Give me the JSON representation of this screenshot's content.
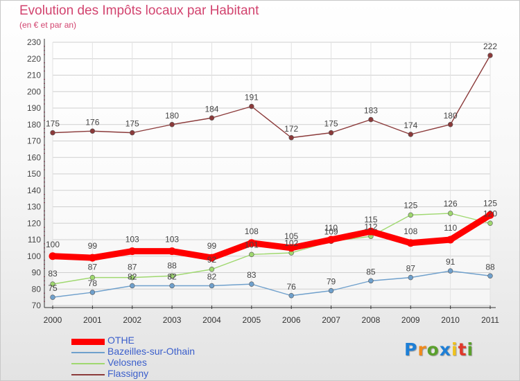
{
  "title": "Evolution des Impôts locaux par Habitant",
  "subtitle": "(en € et par an)",
  "logo": {
    "text": "Proxiti",
    "letters": [
      "P",
      "r",
      "o",
      "x",
      "i",
      "t",
      "i"
    ],
    "colors": [
      "#1e7fd6",
      "#f08a1c",
      "#5aa02c",
      "#1e7fd6",
      "#f0c21c",
      "#e0382a",
      "#5aa02c"
    ]
  },
  "chart_data": {
    "type": "line",
    "title": "Evolution des Impôts locaux par Habitant",
    "subtitle": "(en € et par an)",
    "xlabel": "",
    "ylabel": "",
    "ylim": [
      70,
      230
    ],
    "yticks": [
      "70",
      "80",
      "90",
      "100",
      "110",
      "120",
      "130",
      "140",
      "150",
      "160",
      "170",
      "180",
      "190",
      "200",
      "210",
      "220",
      "230"
    ],
    "x": [
      "2000",
      "2001",
      "2002",
      "2003",
      "2004",
      "2005",
      "2006",
      "2007",
      "2008",
      "2009",
      "2010",
      "2011"
    ],
    "grid": "horizontal",
    "legend_position": "bottom-left",
    "series": [
      {
        "name": "OTHE",
        "color": "#ff0000",
        "values": [
          100,
          99,
          103,
          103,
          99,
          108,
          105,
          110,
          115,
          108,
          110,
          125
        ],
        "labels": [
          "100",
          "99",
          "103",
          "103",
          "99",
          "108",
          "105",
          "110",
          "115",
          "108",
          "110",
          "125"
        ]
      },
      {
        "name": "Bazeilles-sur-Othain",
        "color": "#6fa0cc",
        "values": [
          75,
          78,
          82,
          82,
          82,
          83,
          76,
          79,
          85,
          87,
          91,
          88
        ],
        "labels": [
          "75",
          "78",
          "82",
          "82",
          "82",
          "83",
          "76",
          "79",
          "85",
          "87",
          "91",
          "88"
        ]
      },
      {
        "name": "Velosnes",
        "color": "#9fd86f",
        "values": [
          83,
          87,
          87,
          88,
          92,
          101,
          102,
          109,
          112,
          125,
          126,
          120
        ],
        "labels": [
          "83",
          "87",
          "87",
          "88",
          "92",
          "101",
          "102",
          "109",
          "112",
          "125",
          "126",
          "120"
        ]
      },
      {
        "name": "Flassigny",
        "color": "#8b3a3a",
        "values": [
          175,
          176,
          175,
          180,
          184,
          191,
          172,
          175,
          183,
          174,
          180,
          222
        ],
        "labels": [
          "175",
          "176",
          "175",
          "180",
          "184",
          "191",
          "172",
          "175",
          "183",
          "174",
          "180",
          "222"
        ]
      }
    ]
  }
}
